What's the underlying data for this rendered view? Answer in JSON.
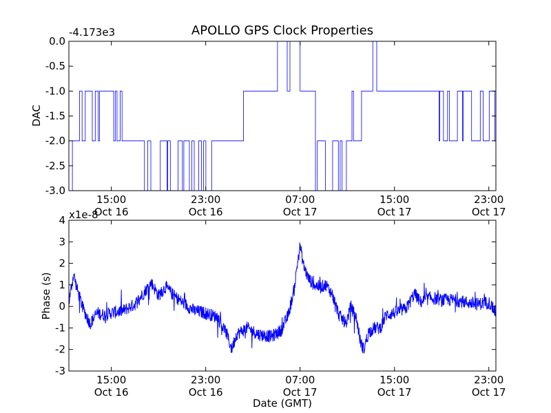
{
  "chart_data": [
    {
      "type": "line",
      "title": "APOLLO GPS Clock Properties",
      "ylabel": "DAC",
      "xlabel": "",
      "offset_text": "-4.173e3",
      "ylim": [
        -3.0,
        0.0
      ],
      "yticks": [
        {
          "value": 0.0,
          "label": "0.0"
        },
        {
          "value": -0.5,
          "label": "-0.5"
        },
        {
          "value": -1.0,
          "label": "-1.0"
        },
        {
          "value": -1.5,
          "label": "-1.5"
        },
        {
          "value": -2.0,
          "label": "-2.0"
        },
        {
          "value": -2.5,
          "label": "-2.5"
        },
        {
          "value": -3.0,
          "label": "-3.0"
        }
      ],
      "xlim_hours": [
        11.4,
        47.6
      ],
      "xticks": [
        {
          "hour": 15,
          "time": "15:00",
          "date": "Oct 16"
        },
        {
          "hour": 23,
          "time": "23:00",
          "date": "Oct 16"
        },
        {
          "hour": 31,
          "time": "07:00",
          "date": "Oct 17"
        },
        {
          "hour": 39,
          "time": "15:00",
          "date": "Oct 17"
        },
        {
          "hour": 47,
          "time": "23:00",
          "date": "Oct 17"
        }
      ],
      "line_color": "#0000ff",
      "series": [
        {
          "segments": [
            {
              "t0": 11.4,
              "t1": 11.7,
              "levels": [
                -2,
                -3
              ]
            },
            {
              "t0": 11.7,
              "t1": 12.3,
              "levels": [
                -2
              ]
            },
            {
              "t0": 12.3,
              "t1": 14.0,
              "levels": [
                -2,
                -1
              ]
            },
            {
              "t0": 14.0,
              "t1": 15.2,
              "levels": [
                -1
              ]
            },
            {
              "t0": 15.2,
              "t1": 16.0,
              "levels": [
                -1,
                -2
              ]
            },
            {
              "t0": 16.0,
              "t1": 17.5,
              "levels": [
                -2
              ]
            },
            {
              "t0": 17.5,
              "t1": 24.6,
              "levels": [
                -2,
                -3
              ]
            },
            {
              "t0": 24.6,
              "t1": 26.2,
              "levels": [
                -2
              ]
            },
            {
              "t0": 26.2,
              "t1": 28.8,
              "levels": [
                -1
              ]
            },
            {
              "t0": 28.8,
              "t1": 31.0,
              "levels": [
                -1,
                0
              ]
            },
            {
              "t0": 31.0,
              "t1": 32.3,
              "levels": [
                -1
              ]
            },
            {
              "t0": 32.3,
              "t1": 35.0,
              "levels": [
                -2,
                -3
              ]
            },
            {
              "t0": 35.0,
              "t1": 35.4,
              "levels": [
                -2
              ]
            },
            {
              "t0": 35.4,
              "t1": 36.5,
              "levels": [
                -2,
                -1
              ]
            },
            {
              "t0": 36.5,
              "t1": 37.5,
              "levels": [
                -1,
                0
              ]
            },
            {
              "t0": 37.5,
              "t1": 42.7,
              "levels": [
                -1
              ]
            },
            {
              "t0": 42.7,
              "t1": 47.6,
              "levels": [
                -1,
                -2
              ]
            }
          ]
        }
      ]
    },
    {
      "type": "line",
      "title": "",
      "ylabel": "Phase (s)",
      "xlabel": "Date (GMT)",
      "offset_text": "x1e-8",
      "ylim": [
        -3,
        4
      ],
      "yticks": [
        {
          "value": 4,
          "label": "4"
        },
        {
          "value": 3,
          "label": "3"
        },
        {
          "value": 2,
          "label": "2"
        },
        {
          "value": 1,
          "label": "1"
        },
        {
          "value": 0,
          "label": "0"
        },
        {
          "value": -1,
          "label": "-1"
        },
        {
          "value": -2,
          "label": "-2"
        },
        {
          "value": -3,
          "label": "-3"
        }
      ],
      "xlim_hours": [
        11.4,
        47.6
      ],
      "xticks": [
        {
          "hour": 15,
          "time": "15:00",
          "date": "Oct 16"
        },
        {
          "hour": 23,
          "time": "23:00",
          "date": "Oct 16"
        },
        {
          "hour": 31,
          "time": "07:00",
          "date": "Oct 17"
        },
        {
          "hour": 39,
          "time": "15:00",
          "date": "Oct 17"
        },
        {
          "hour": 47,
          "time": "23:00",
          "date": "Oct 17"
        }
      ],
      "line_color": "#0000ff",
      "series": [
        {
          "x": [
            11.4,
            11.8,
            12.1,
            12.6,
            13.2,
            13.8,
            14.4,
            15.0,
            16.0,
            17.0,
            17.7,
            18.4,
            19.0,
            19.6,
            20.3,
            21.0,
            22.0,
            23.0,
            24.0,
            24.8,
            25.2,
            25.6,
            26.5,
            27.5,
            28.6,
            29.4,
            30.0,
            30.5,
            30.8,
            31.0,
            31.3,
            31.7,
            32.2,
            32.7,
            33.2,
            33.7,
            34.3,
            34.9,
            35.3,
            35.8,
            36.1,
            36.4,
            36.8,
            37.3,
            37.8,
            38.3,
            39.0,
            40.0,
            40.7,
            41.2,
            42.0,
            43.0,
            44.0,
            45.0,
            46.0,
            47.0,
            47.6
          ],
          "y": [
            0.2,
            1.5,
            0.8,
            -0.1,
            -0.8,
            -0.3,
            -0.4,
            -0.3,
            -0.2,
            0.1,
            0.6,
            1.1,
            0.5,
            0.9,
            0.5,
            0.2,
            -0.2,
            -0.3,
            -0.5,
            -1.3,
            -2.0,
            -1.3,
            -1.0,
            -1.3,
            -1.4,
            -1.1,
            -0.4,
            0.8,
            2.1,
            2.8,
            1.9,
            1.3,
            1.0,
            0.9,
            1.0,
            0.6,
            -0.4,
            -0.8,
            0.0,
            -0.6,
            -1.6,
            -2.0,
            -1.2,
            -1.0,
            -1.0,
            -0.4,
            -0.3,
            -0.1,
            0.6,
            0.2,
            0.4,
            0.3,
            0.3,
            0.2,
            0.1,
            0.2,
            -0.3
          ],
          "noise": 0.3
        }
      ]
    }
  ]
}
